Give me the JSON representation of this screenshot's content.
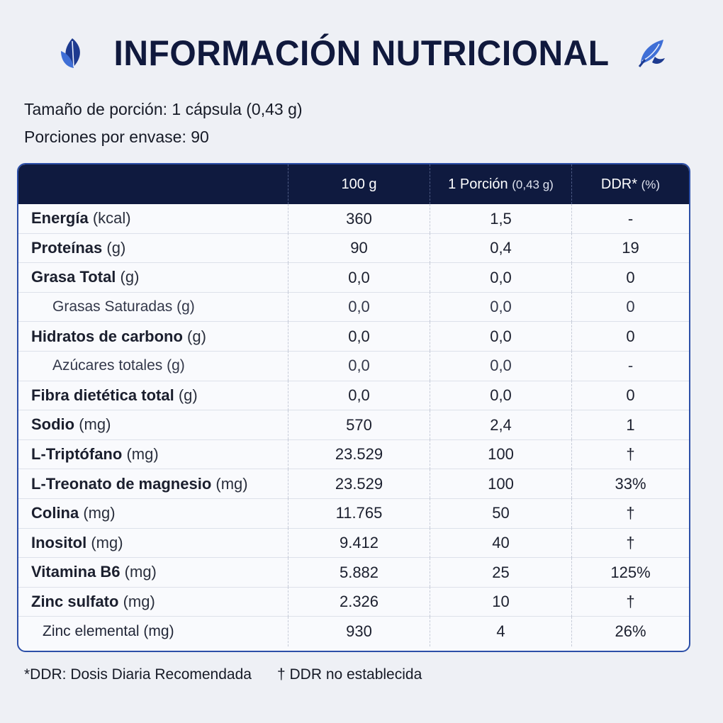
{
  "header": {
    "title": "INFORMACIÓN NUTRICIONAL",
    "left_icon": "leaf-icon",
    "right_icon": "leaf-icon",
    "accent_color": "#10193d",
    "leaf_color": "#2f5fc7"
  },
  "serving": {
    "size": "Tamaño de porción: 1 cápsula (0,43 g)",
    "per_container": "Porciones por envase: 90"
  },
  "table": {
    "columns": {
      "c100": "100 g",
      "portion": "1 Porción",
      "portion_note": "(0,43 g)",
      "ddr": "DDR*",
      "ddr_unit": "(%)"
    },
    "rows": [
      {
        "name": "Energía",
        "unit": "(kcal)",
        "v100": "360",
        "portion": "1,5",
        "ddr": "-",
        "level": "main"
      },
      {
        "name": "Proteínas",
        "unit": "(g)",
        "v100": "90",
        "portion": "0,4",
        "ddr": "19",
        "level": "main"
      },
      {
        "name": "Grasa Total",
        "unit": "(g)",
        "v100": "0,0",
        "portion": "0,0",
        "ddr": "0",
        "level": "main"
      },
      {
        "name": "Grasas Saturadas",
        "unit": "(g)",
        "v100": "0,0",
        "portion": "0,0",
        "ddr": "0",
        "level": "sub"
      },
      {
        "name": "Hidratos de carbono",
        "unit": "(g)",
        "v100": "0,0",
        "portion": "0,0",
        "ddr": "0",
        "level": "main"
      },
      {
        "name": "Azúcares totales",
        "unit": "(g)",
        "v100": "0,0",
        "portion": "0,0",
        "ddr": "-",
        "level": "sub"
      },
      {
        "name": "Fibra dietética total",
        "unit": "(g)",
        "v100": "0,0",
        "portion": "0,0",
        "ddr": "0",
        "level": "main"
      },
      {
        "name": "Sodio",
        "unit": "(mg)",
        "v100": "570",
        "portion": "2,4",
        "ddr": "1",
        "level": "main"
      },
      {
        "name": "L-Triptófano",
        "unit": "(mg)",
        "v100": "23.529",
        "portion": "100",
        "ddr": "†",
        "level": "main"
      },
      {
        "name": "L-Treonato de magnesio",
        "unit": "(mg)",
        "v100": "23.529",
        "portion": "100",
        "ddr": "33%",
        "level": "main"
      },
      {
        "name": "Colina",
        "unit": "(mg)",
        "v100": "11.765",
        "portion": "50",
        "ddr": "†",
        "level": "main"
      },
      {
        "name": "Inositol",
        "unit": "(mg)",
        "v100": "9.412",
        "portion": "40",
        "ddr": "†",
        "level": "main"
      },
      {
        "name": "Vitamina B6",
        "unit": "(mg)",
        "v100": "5.882",
        "portion": "25",
        "ddr": "125%",
        "level": "main"
      },
      {
        "name": "Zinc sulfato",
        "unit": "(mg)",
        "v100": "2.326",
        "portion": "10",
        "ddr": "†",
        "level": "main"
      },
      {
        "name": "Zinc elemental",
        "unit": "(mg)",
        "v100": "930",
        "portion": "4",
        "ddr": "26%",
        "level": "sub2"
      }
    ]
  },
  "footnotes": {
    "ddr": "*DDR: Dosis Diaria Recomendada",
    "dagger": "† DDR no establecida"
  }
}
